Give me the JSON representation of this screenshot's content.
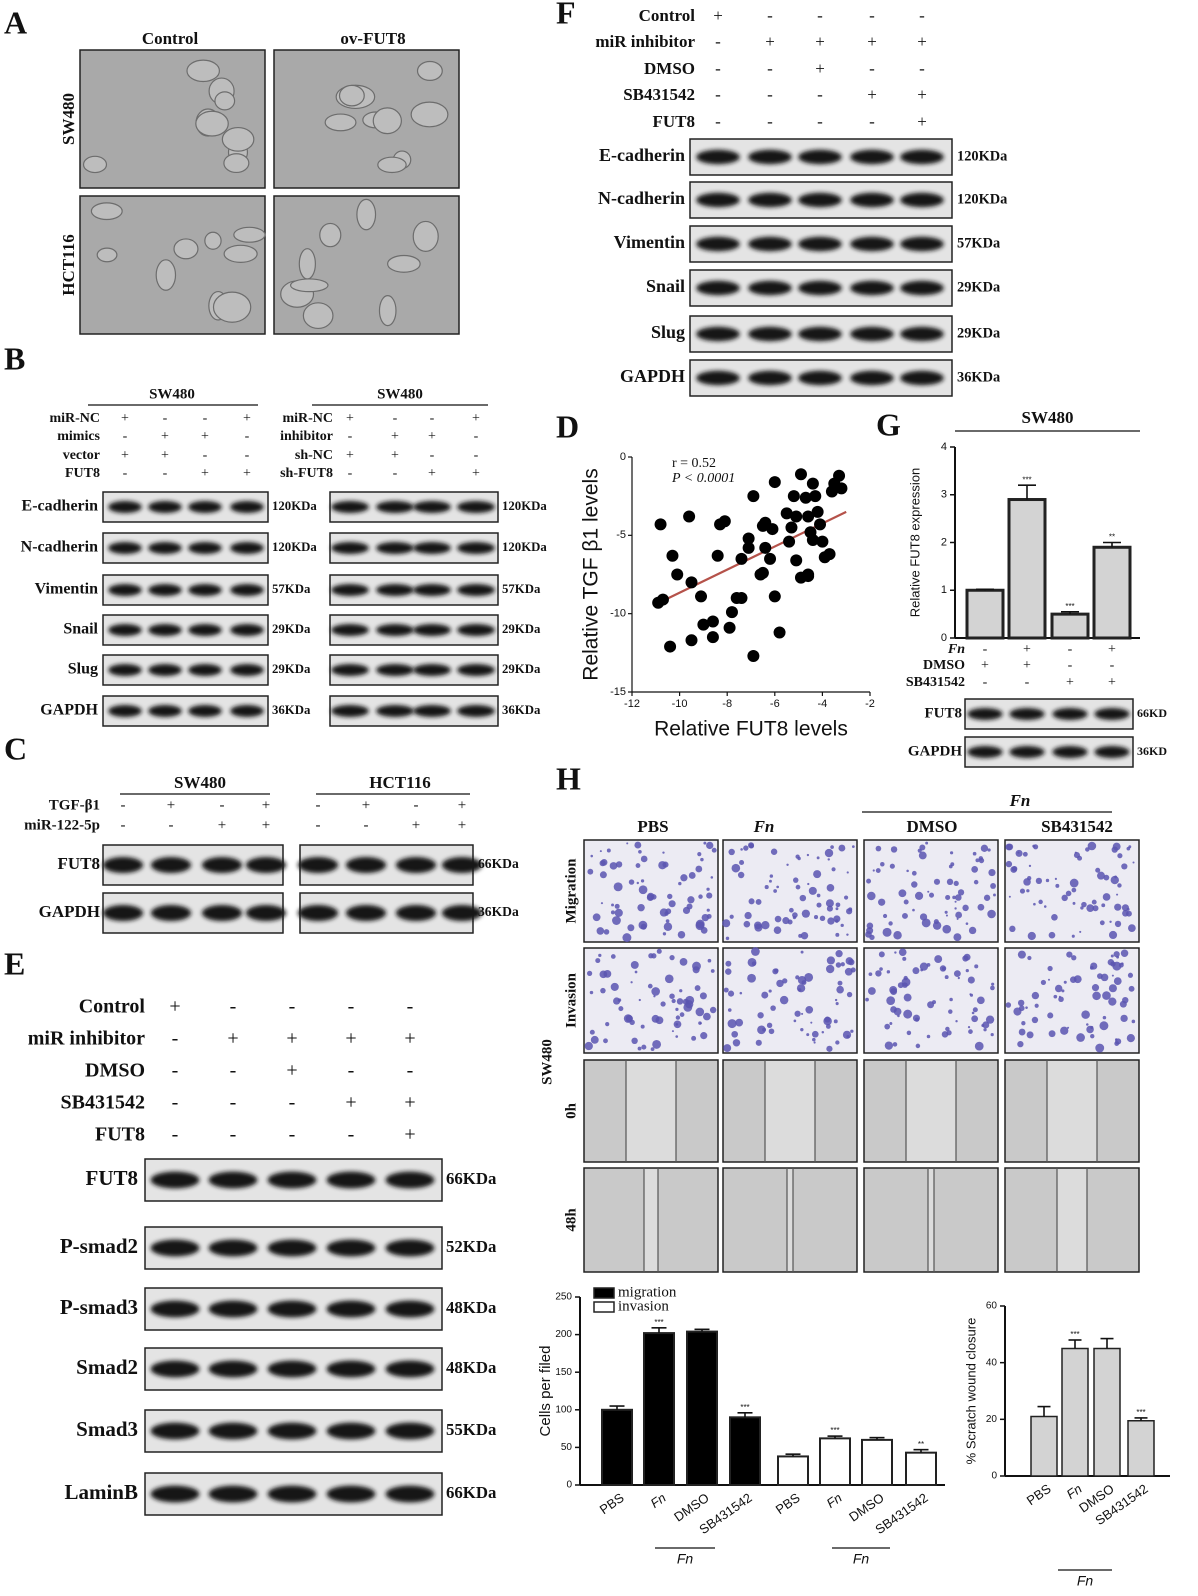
{
  "figure": {
    "panel_labels": [
      "A",
      "B",
      "C",
      "D",
      "E",
      "F",
      "G",
      "H"
    ],
    "A": {
      "columns": [
        "Control",
        "ov-FUT8"
      ],
      "rows": [
        "SW480",
        "HCT116"
      ]
    },
    "B": {
      "blots": [
        {
          "group": "SW480",
          "conditions": [
            {
              "name": "miR-NC",
              "signs": [
                "+",
                "-",
                "-",
                "+"
              ]
            },
            {
              "name": "mimics",
              "signs": [
                "-",
                "+",
                "+",
                "-"
              ]
            },
            {
              "name": "vector",
              "signs": [
                "+",
                "+",
                "-",
                "-"
              ]
            },
            {
              "name": "FUT8",
              "signs": [
                "-",
                "-",
                "+",
                "+"
              ]
            }
          ],
          "proteins": [
            "E-cadherin",
            "N-cadherin",
            "Vimentin",
            "Snail",
            "Slug",
            "GAPDH"
          ],
          "sizes": [
            "120KDa",
            "120KDa",
            "57KDa",
            "29KDa",
            "29KDa",
            "36KDa"
          ]
        },
        {
          "group": "SW480",
          "conditions": [
            {
              "name": "miR-NC",
              "signs": [
                "+",
                "-",
                "-",
                "+"
              ]
            },
            {
              "name": "inhibitor",
              "signs": [
                "-",
                "+",
                "+",
                "-"
              ]
            },
            {
              "name": "sh-NC",
              "signs": [
                "+",
                "+",
                "-",
                "-"
              ]
            },
            {
              "name": "sh-FUT8",
              "signs": [
                "-",
                "-",
                "+",
                "+"
              ]
            }
          ],
          "sizes": [
            "120KDa",
            "120KDa",
            "57KDa",
            "29KDa",
            "29KDa",
            "36KDa"
          ]
        }
      ]
    },
    "C": {
      "groups": [
        "SW480",
        "HCT116"
      ],
      "conditions": [
        {
          "name": "TGF-β1",
          "signs": [
            "-",
            "+",
            "-",
            "+",
            "-",
            "+",
            "-",
            "+"
          ]
        },
        {
          "name": "miR-122-5p",
          "signs": [
            "-",
            "-",
            "+",
            "+",
            "-",
            "-",
            "+",
            "+"
          ]
        }
      ],
      "proteins": [
        "FUT8",
        "GAPDH"
      ],
      "sizes": [
        "66KDa",
        "36KDa"
      ]
    },
    "E": {
      "conditions": [
        {
          "name": "Control",
          "signs": [
            "+",
            "-",
            "-",
            "-",
            "-"
          ]
        },
        {
          "name": "miR inhibitor",
          "signs": [
            "-",
            "+",
            "+",
            "+",
            "+"
          ]
        },
        {
          "name": "DMSO",
          "signs": [
            "-",
            "-",
            "+",
            "-",
            "-"
          ]
        },
        {
          "name": "SB431542",
          "signs": [
            "-",
            "-",
            "-",
            "+",
            "+"
          ]
        },
        {
          "name": "FUT8",
          "signs": [
            "-",
            "-",
            "-",
            "-",
            "+"
          ]
        }
      ],
      "proteins": [
        "FUT8",
        "P-smad2",
        "P-smad3",
        "Smad2",
        "Smad3",
        "LaminB"
      ],
      "sizes": [
        "66KDa",
        "52KDa",
        "48KDa",
        "48KDa",
        "55KDa",
        "66KDa"
      ]
    },
    "F": {
      "conditions": [
        {
          "name": "Control",
          "signs": [
            "+",
            "-",
            "-",
            "-",
            "-"
          ]
        },
        {
          "name": "miR inhibitor",
          "signs": [
            "-",
            "+",
            "+",
            "+",
            "+"
          ]
        },
        {
          "name": "DMSO",
          "signs": [
            "-",
            "-",
            "+",
            "-",
            "-"
          ]
        },
        {
          "name": "SB431542",
          "signs": [
            "-",
            "-",
            "-",
            "+",
            "+"
          ]
        },
        {
          "name": "FUT8",
          "signs": [
            "-",
            "-",
            "-",
            "-",
            "+"
          ]
        }
      ],
      "proteins": [
        "E-cadherin",
        "N-cadherin",
        "Vimentin",
        "Snail",
        "Slug",
        "GAPDH"
      ],
      "sizes": [
        "120KDa",
        "120KDa",
        "57KDa",
        "29KDa",
        "29KDa",
        "36KDa"
      ]
    },
    "G": {
      "conditions": [
        {
          "name": "Fn",
          "signs": [
            "-",
            "+",
            "-",
            "+"
          ]
        },
        {
          "name": "DMSO",
          "signs": [
            "+",
            "+",
            "-",
            "-"
          ]
        },
        {
          "name": "SB431542",
          "signs": [
            "-",
            "-",
            "+",
            "+"
          ]
        }
      ],
      "proteins": [
        "FUT8",
        "GAPDH"
      ],
      "sizes": [
        "66KD",
        "36KD"
      ]
    },
    "H": {
      "columns": [
        "PBS",
        "Fn",
        "DMSO",
        "SB431542"
      ],
      "column_group": "Fn",
      "rows": [
        "Migration",
        "Invasion",
        "0h",
        "48h"
      ],
      "cell_line": "SW480"
    }
  },
  "chart_data": [
    {
      "type": "scatter",
      "x_label": "Relative FUT8 levels",
      "y_label": "Relative TGF β1 levels",
      "annotations": [
        "r = 0.52",
        "P < 0.0001"
      ],
      "color": "#000000",
      "x": [
        -10.8,
        -10.9,
        -10.7,
        -10.3,
        -10.1,
        -10.4,
        -9.6,
        -9.5,
        -9.5,
        -9.1,
        -9.0,
        -8.6,
        -8.6,
        -8.4,
        -8.3,
        -8.1,
        -7.9,
        -7.8,
        -7.6,
        -7.4,
        -7.4,
        -7.1,
        -7.1,
        -6.9,
        -6.9,
        -6.6,
        -6.5,
        -6.5,
        -6.4,
        -6.4,
        -6.2,
        -6.1,
        -6.0,
        -6.0,
        -5.8,
        -5.5,
        -5.4,
        -5.3,
        -5.2,
        -5.1,
        -5.1,
        -4.9,
        -4.9,
        -4.7,
        -4.6,
        -4.6,
        -4.6,
        -4.5,
        -4.4,
        -4.4,
        -4.3,
        -4.2,
        -4.1,
        -4.0,
        -3.9,
        -3.7,
        -3.6,
        -3.5,
        -3.3,
        -3.2
      ],
      "y": [
        -4.3,
        -9.3,
        -9.1,
        -6.3,
        -7.5,
        -12.1,
        -3.8,
        -8.0,
        -11.7,
        -8.9,
        -10.7,
        -10.5,
        -11.5,
        -6.3,
        -4.3,
        -4.1,
        -10.9,
        -9.9,
        -9.0,
        -9.0,
        -6.5,
        -5.8,
        -5.2,
        -2.5,
        -12.7,
        -7.5,
        -7.4,
        -4.4,
        -4.2,
        -5.8,
        -6.5,
        -4.6,
        -1.6,
        -8.9,
        -11.2,
        -3.6,
        -5.4,
        -4.5,
        -2.5,
        -3.8,
        -6.6,
        -1.1,
        -7.7,
        -2.6,
        -3.8,
        -7.5,
        -7.6,
        -4.8,
        -5.3,
        -1.7,
        -2.5,
        -3.5,
        -4.3,
        -5.4,
        -6.4,
        -6.2,
        -2.2,
        -1.7,
        -1.2,
        -2.0
      ],
      "trend_line": {
        "x": [
          -11,
          -3
        ],
        "y": [
          -9.4,
          -3.5
        ],
        "color": "#b5524a"
      },
      "xlim": [
        -12,
        -2
      ],
      "xticks": [
        -12,
        -10,
        -8,
        -6,
        -4,
        -2
      ],
      "ylim": [
        -15,
        0
      ],
      "yticks": [
        0,
        -5,
        -10,
        -15
      ]
    },
    {
      "type": "bar",
      "title": "SW480",
      "y_label": "Relative FUT8 expression",
      "categories": [
        null,
        null,
        null,
        null
      ],
      "values": [
        1,
        2.9,
        0.5,
        1.9
      ],
      "errors": [
        0.02,
        0.3,
        0.05,
        0.1
      ],
      "significance": [
        null,
        "***",
        "***",
        "**"
      ],
      "color": "#d3d3d3",
      "ylim": [
        0,
        4
      ],
      "yticks": [
        0,
        1,
        2,
        3,
        4
      ]
    },
    {
      "type": "bar",
      "y_label": "Cells per filed",
      "categories": [
        "PBS",
        "Fn",
        "DMSO",
        "SB431542",
        "PBS",
        "Fn",
        "DMSO",
        "SB431542"
      ],
      "group_labels": [
        "Fn",
        "Fn"
      ],
      "series": [
        {
          "name": "migration",
          "color": "#000000",
          "values": [
            100,
            202,
            204,
            90,
            null,
            null,
            null,
            null
          ],
          "errors": [
            5,
            7,
            3,
            6,
            null,
            null,
            null,
            null
          ],
          "significance": [
            null,
            "***",
            null,
            "***",
            null,
            null,
            null,
            null
          ]
        },
        {
          "name": "invasion",
          "color": "#ffffff",
          "values": [
            null,
            null,
            null,
            null,
            38,
            62,
            60,
            43
          ],
          "errors": [
            null,
            null,
            null,
            null,
            3,
            3,
            3,
            4
          ],
          "significance": [
            null,
            null,
            null,
            null,
            null,
            "***",
            null,
            "**"
          ]
        }
      ],
      "legend": "top-left",
      "ylim": [
        0,
        250
      ],
      "yticks": [
        0,
        50,
        100,
        150,
        200,
        250
      ]
    },
    {
      "type": "bar",
      "y_label": "% Scratch wound closure",
      "categories": [
        "PBS",
        "Fn",
        "DMSO",
        "SB431542"
      ],
      "group_labels": [
        "Fn"
      ],
      "values": [
        21,
        45,
        45,
        19.5
      ],
      "errors": [
        3.5,
        3,
        3.5,
        1
      ],
      "significance": [
        null,
        "***",
        null,
        "***"
      ],
      "color": "#d3d3d3",
      "ylim": [
        0,
        60
      ],
      "yticks": [
        0,
        20,
        40,
        60
      ]
    }
  ]
}
